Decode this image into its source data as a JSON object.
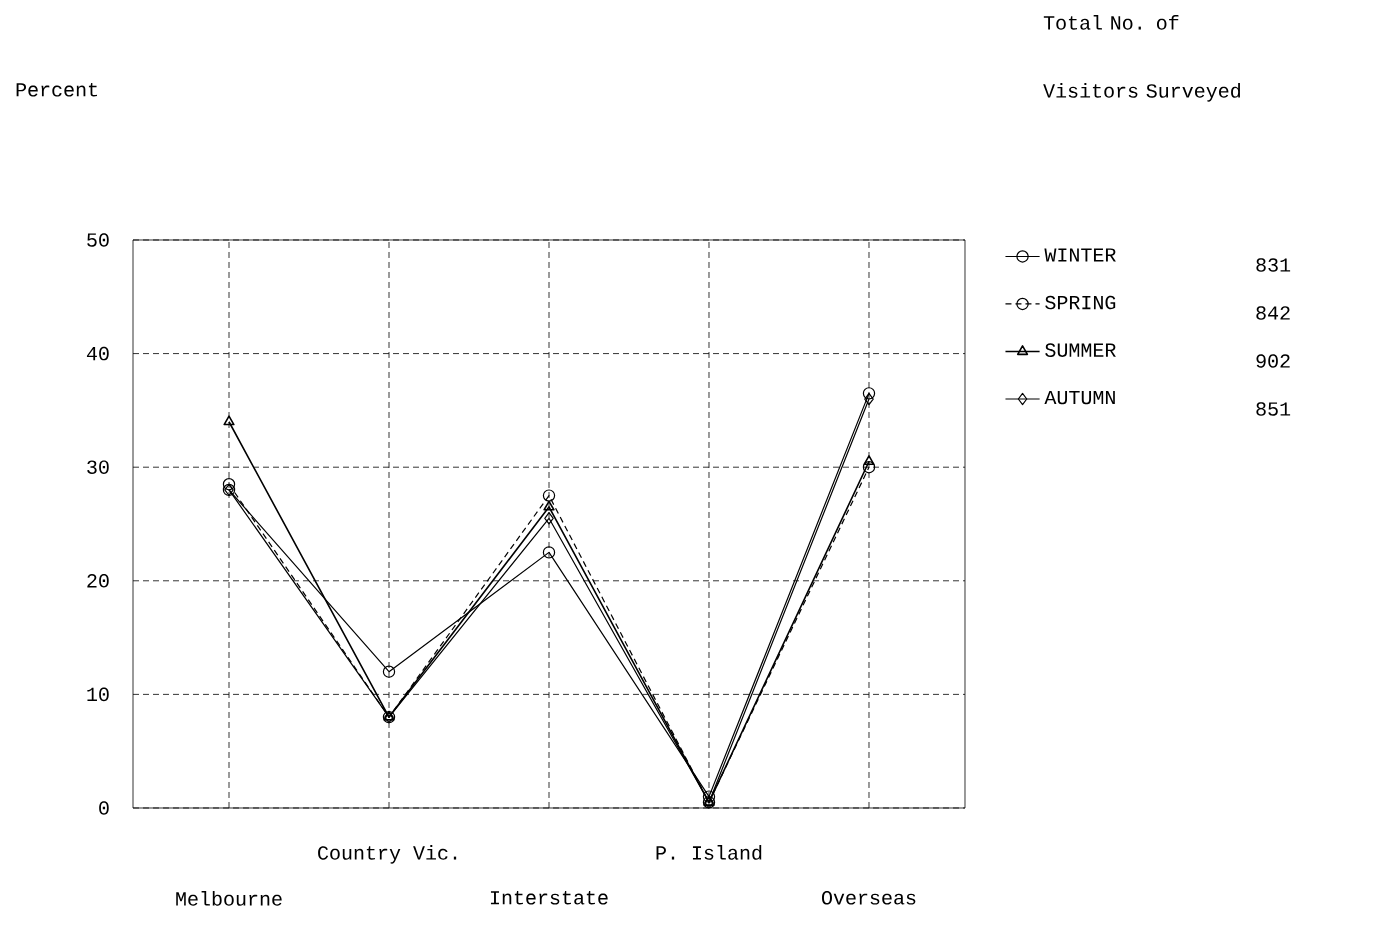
{
  "chart_data": {
    "type": "line",
    "legend_title": "Total No. of Visitors Surveyed",
    "categories": [
      "Melbourne",
      "Country Vic.",
      "Interstate",
      "P. Island",
      "Overseas"
    ],
    "series": [
      {
        "name": "WINTER",
        "color": "#000000",
        "marker": "circle",
        "line_style": "solid",
        "values": [
          28,
          12,
          22.5,
          1,
          36.5
        ]
      },
      {
        "name": "SPRING",
        "color": "#000000",
        "marker": "circle",
        "line_style": "dashed",
        "values": [
          28.5,
          8,
          27.5,
          0.5,
          30
        ]
      },
      {
        "name": "SUMMER",
        "color": "#000000",
        "marker": "triangle",
        "line_style": "solid",
        "values": [
          34,
          8,
          26.5,
          0.5,
          30.5
        ]
      },
      {
        "name": "AUTUMN",
        "color": "#000000",
        "marker": "diamond",
        "line_style": "solid",
        "values": [
          28,
          8,
          25.5,
          0.5,
          36
        ]
      }
    ],
    "annotations": [
      "Percent",
      "831",
      "842",
      "902",
      "851"
    ],
    "ylim": [
      0,
      50
    ],
    "yticks": [
      0,
      10,
      20,
      30,
      40,
      50
    ],
    "grid": true,
    "legend": "right"
  }
}
